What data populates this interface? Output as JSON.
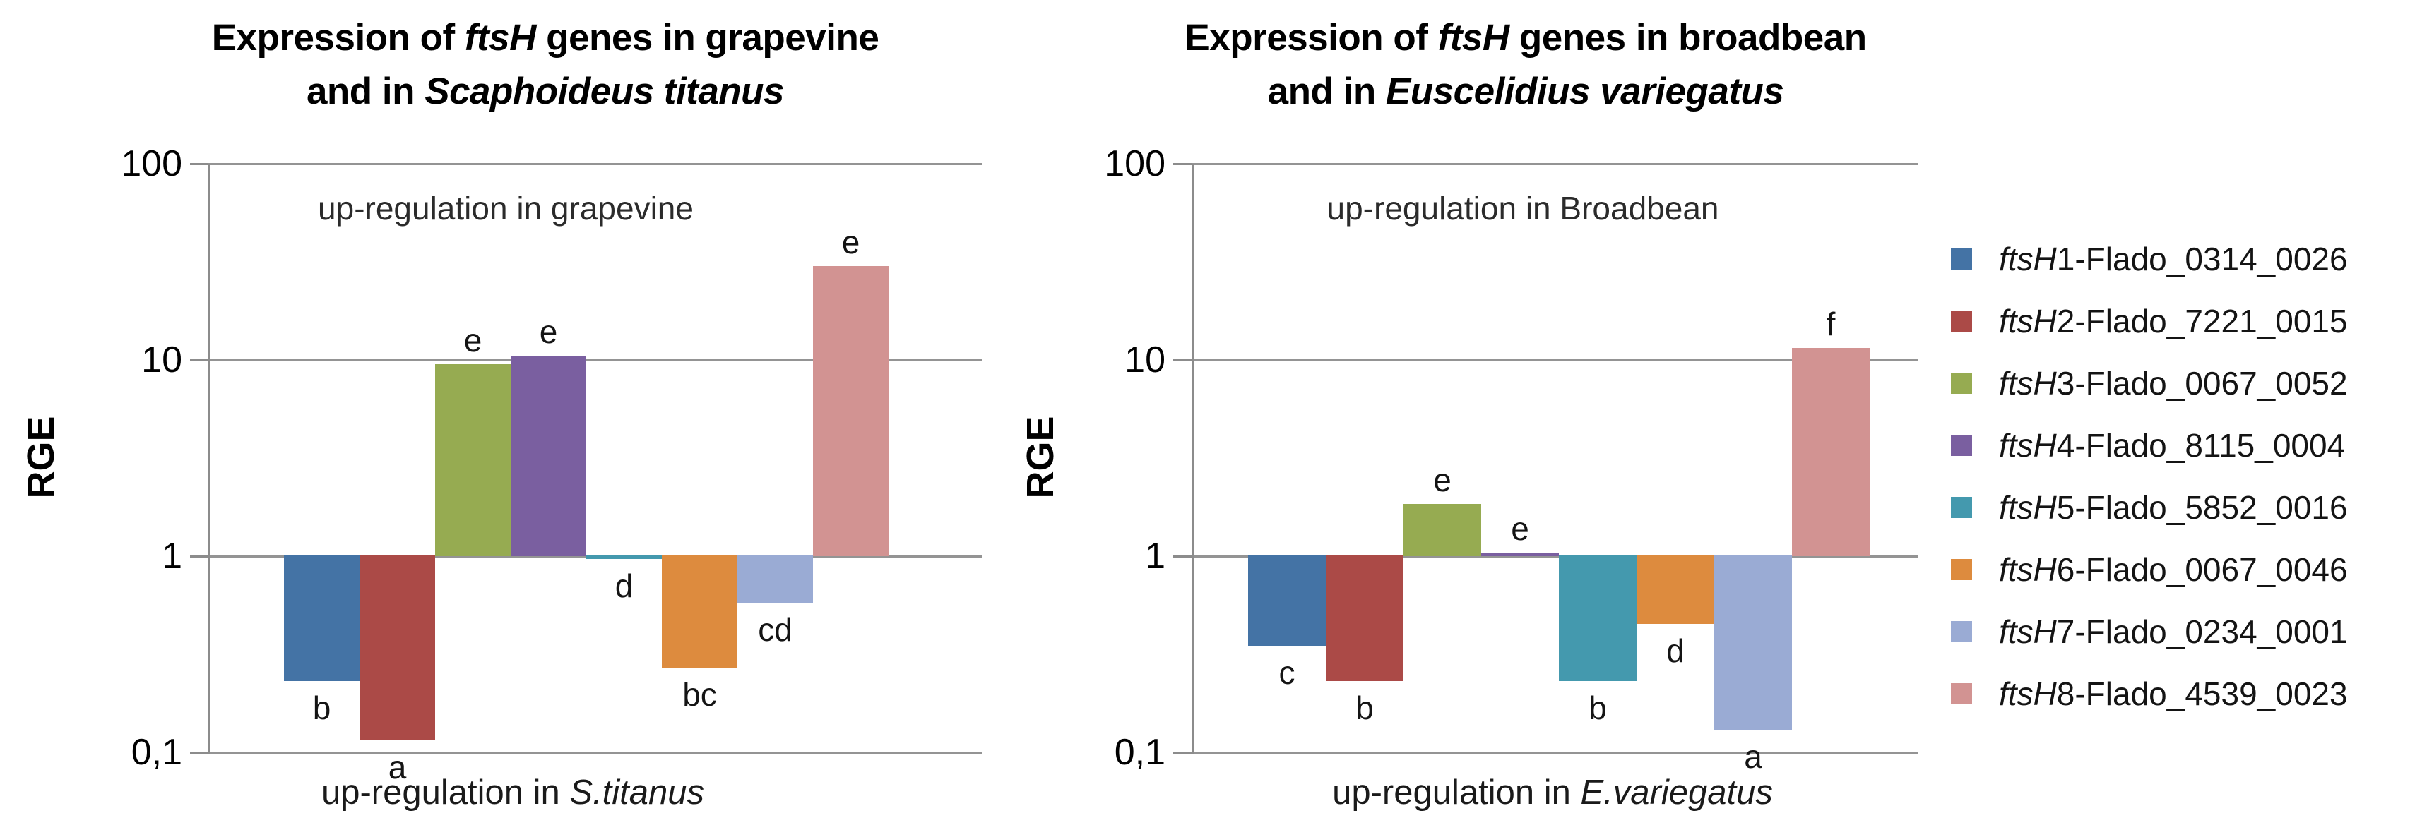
{
  "palette": {
    "bar_colors": [
      "#4473a5",
      "#ab4a47",
      "#96ab51",
      "#7a5fa0",
      "#4499ae",
      "#dd8b3e",
      "#9aabd4",
      "#d29392"
    ],
    "gridline_color": "#949494",
    "axis_color": "#8c8c8c",
    "text_color": "#000000"
  },
  "legend": {
    "position": "right",
    "items": [
      {
        "parts": [
          {
            "text": "ftsH",
            "italic": true
          },
          {
            "text": "1-Flado_0314_0026",
            "italic": false
          }
        ],
        "color": "#4473a5"
      },
      {
        "parts": [
          {
            "text": "ftsH",
            "italic": true
          },
          {
            "text": "2-Flado_7221_0015",
            "italic": false
          }
        ],
        "color": "#ab4a47"
      },
      {
        "parts": [
          {
            "text": "ftsH",
            "italic": true
          },
          {
            "text": "3-Flado_0067_0052",
            "italic": false
          }
        ],
        "color": "#96ab51"
      },
      {
        "parts": [
          {
            "text": "ftsH",
            "italic": true
          },
          {
            "text": "4-Flado_8115_0004",
            "italic": false
          }
        ],
        "color": "#7a5fa0"
      },
      {
        "parts": [
          {
            "text": "ftsH",
            "italic": true
          },
          {
            "text": "5-Flado_5852_0016",
            "italic": false
          }
        ],
        "color": "#4499ae"
      },
      {
        "parts": [
          {
            "text": "ftsH",
            "italic": true
          },
          {
            "text": "6-Flado_0067_0046",
            "italic": false
          }
        ],
        "color": "#dd8b3e"
      },
      {
        "parts": [
          {
            "text": "ftsH",
            "italic": true
          },
          {
            "text": "7-Flado_0234_0001",
            "italic": false
          }
        ],
        "color": "#9aabd4"
      },
      {
        "parts": [
          {
            "text": "ftsH",
            "italic": true
          },
          {
            "text": "8-Flado_4539_0023",
            "italic": false
          }
        ],
        "color": "#d29392"
      }
    ]
  },
  "chart_data": [
    {
      "type": "bar",
      "id": "grapevine",
      "title": "Expression of ftsH genes in grapevine and in Scaphoideus titanus",
      "title_lines": [
        [
          {
            "text": "Expression of ",
            "italic": false
          },
          {
            "text": "ftsH",
            "italic": true
          },
          {
            "text": " genes in grapevine",
            "italic": false
          }
        ],
        [
          {
            "text": "and in ",
            "italic": false
          },
          {
            "text": "Scaphoideus titanus",
            "italic": true
          }
        ]
      ],
      "ylabel": "RGE",
      "yscale": "log",
      "ylim": [
        0.1,
        100
      ],
      "yticks": [
        {
          "value": 100,
          "label": "100"
        },
        {
          "value": 10,
          "label": "10"
        },
        {
          "value": 1,
          "label": "1"
        },
        {
          "value": 0.1,
          "label": "0,1"
        }
      ],
      "grid": true,
      "annotation_top": [
        {
          "text": "up-regulation in grapevine",
          "italic": false
        }
      ],
      "annotation_bottom": [
        {
          "text": "up-regulation in ",
          "italic": false
        },
        {
          "text": "S.titanus",
          "italic": true
        }
      ],
      "series": [
        {
          "name": "ftsH1-Flado_0314_0026",
          "value": 0.23,
          "label": "b"
        },
        {
          "name": "ftsH2-Flado_7221_0015",
          "value": 0.115,
          "label": "a"
        },
        {
          "name": "ftsH3-Flado_0067_0052",
          "value": 9.5,
          "label": "e"
        },
        {
          "name": "ftsH4-Flado_8115_0004",
          "value": 10.5,
          "label": "e"
        },
        {
          "name": "ftsH5-Flado_5852_0016",
          "value": 0.97,
          "label": "d"
        },
        {
          "name": "ftsH6-Flado_0067_0046",
          "value": 0.27,
          "label": "bc"
        },
        {
          "name": "ftsH7-Flado_0234_0001",
          "value": 0.58,
          "label": "cd"
        },
        {
          "name": "ftsH8-Flado_4539_0023",
          "value": 30,
          "label": "e"
        }
      ]
    },
    {
      "type": "bar",
      "id": "broadbean",
      "title": "Expression of ftsH genes in broadbean and in Euscelidius variegatus",
      "title_lines": [
        [
          {
            "text": "Expression of ",
            "italic": false
          },
          {
            "text": "ftsH",
            "italic": true
          },
          {
            "text": " genes in broadbean",
            "italic": false
          }
        ],
        [
          {
            "text": "and in ",
            "italic": false
          },
          {
            "text": "Euscelidius variegatus",
            "italic": true
          }
        ]
      ],
      "ylabel": "RGE",
      "yscale": "log",
      "ylim": [
        0.1,
        100
      ],
      "yticks": [
        {
          "value": 100,
          "label": "100"
        },
        {
          "value": 10,
          "label": "10"
        },
        {
          "value": 1,
          "label": "1"
        },
        {
          "value": 0.1,
          "label": "0,1"
        }
      ],
      "grid": true,
      "annotation_top": [
        {
          "text": "up-regulation in Broadbean",
          "italic": false
        }
      ],
      "annotation_bottom": [
        {
          "text": "up-regulation in ",
          "italic": false
        },
        {
          "text": "E.variegatus",
          "italic": true
        }
      ],
      "series": [
        {
          "name": "ftsH1-Flado_0314_0026",
          "value": 0.35,
          "label": "c"
        },
        {
          "name": "ftsH2-Flado_7221_0015",
          "value": 0.23,
          "label": "b"
        },
        {
          "name": "ftsH3-Flado_0067_0052",
          "value": 1.85,
          "label": "e"
        },
        {
          "name": "ftsH4-Flado_8115_0004",
          "value": 1.04,
          "label": "e"
        },
        {
          "name": "ftsH5-Flado_5852_0016",
          "value": 0.23,
          "label": "b"
        },
        {
          "name": "ftsH6-Flado_0067_0046",
          "value": 0.45,
          "label": "d"
        },
        {
          "name": "ftsH7-Flado_0234_0001",
          "value": 0.13,
          "label": "a"
        },
        {
          "name": "ftsH8-Flado_4539_0023",
          "value": 11.5,
          "label": "f"
        }
      ]
    }
  ]
}
